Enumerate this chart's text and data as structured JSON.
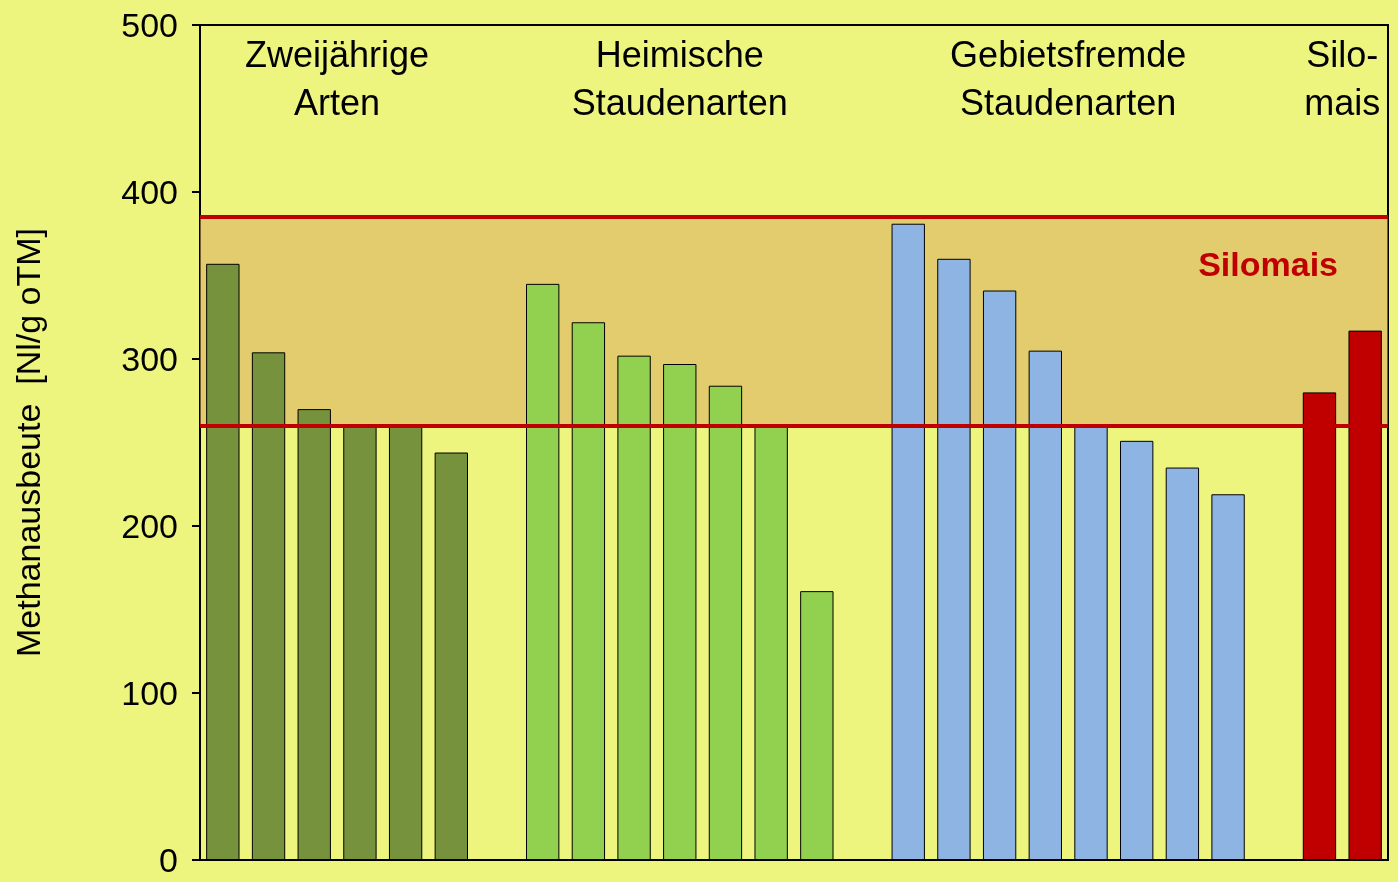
{
  "chart_data": {
    "type": "bar",
    "ylabel": "Methanausbeute  [Nl/g oTM]",
    "categories": [
      null,
      null,
      null,
      null,
      null,
      null,
      null,
      null,
      null,
      null,
      null,
      null,
      null,
      null,
      null,
      null,
      null,
      null,
      null,
      null,
      null,
      null,
      null,
      null,
      null,
      null
    ],
    "values": [
      357,
      304,
      270,
      260,
      260,
      244,
      null,
      345,
      322,
      302,
      297,
      284,
      260,
      161,
      null,
      381,
      360,
      341,
      305,
      260,
      251,
      235,
      219,
      null,
      280,
      317
    ],
    "colors": [
      "#76923c",
      "#76923c",
      "#76923c",
      "#76923c",
      "#76923c",
      "#76923c",
      null,
      "#92d050",
      "#92d050",
      "#92d050",
      "#92d050",
      "#92d050",
      "#92d050",
      "#92d050",
      null,
      "#8eb4e3",
      "#8eb4e3",
      "#8eb4e3",
      "#8eb4e3",
      "#8eb4e3",
      "#8eb4e3",
      "#8eb4e3",
      "#8eb4e3",
      null,
      "#c00000",
      "#c00000"
    ],
    "ylim": [
      0,
      500
    ],
    "yticks": [
      0,
      100,
      200,
      300,
      400,
      500
    ],
    "grid": false,
    "annotations": [
      "Zweijährige\nArten",
      "Heimische\nStaudenarten",
      "Gebietsfremde\nStaudenarten",
      "Silo-\nmais"
    ],
    "bands": [
      {
        "axis": "y",
        "from": 260,
        "to": 385,
        "label": "Silomais",
        "color": "#d9a95e"
      }
    ],
    "ref_lines": [
      {
        "axis": "y",
        "value": 260,
        "color": "#c00000"
      },
      {
        "axis": "y",
        "value": 385,
        "color": "#c00000"
      }
    ]
  }
}
